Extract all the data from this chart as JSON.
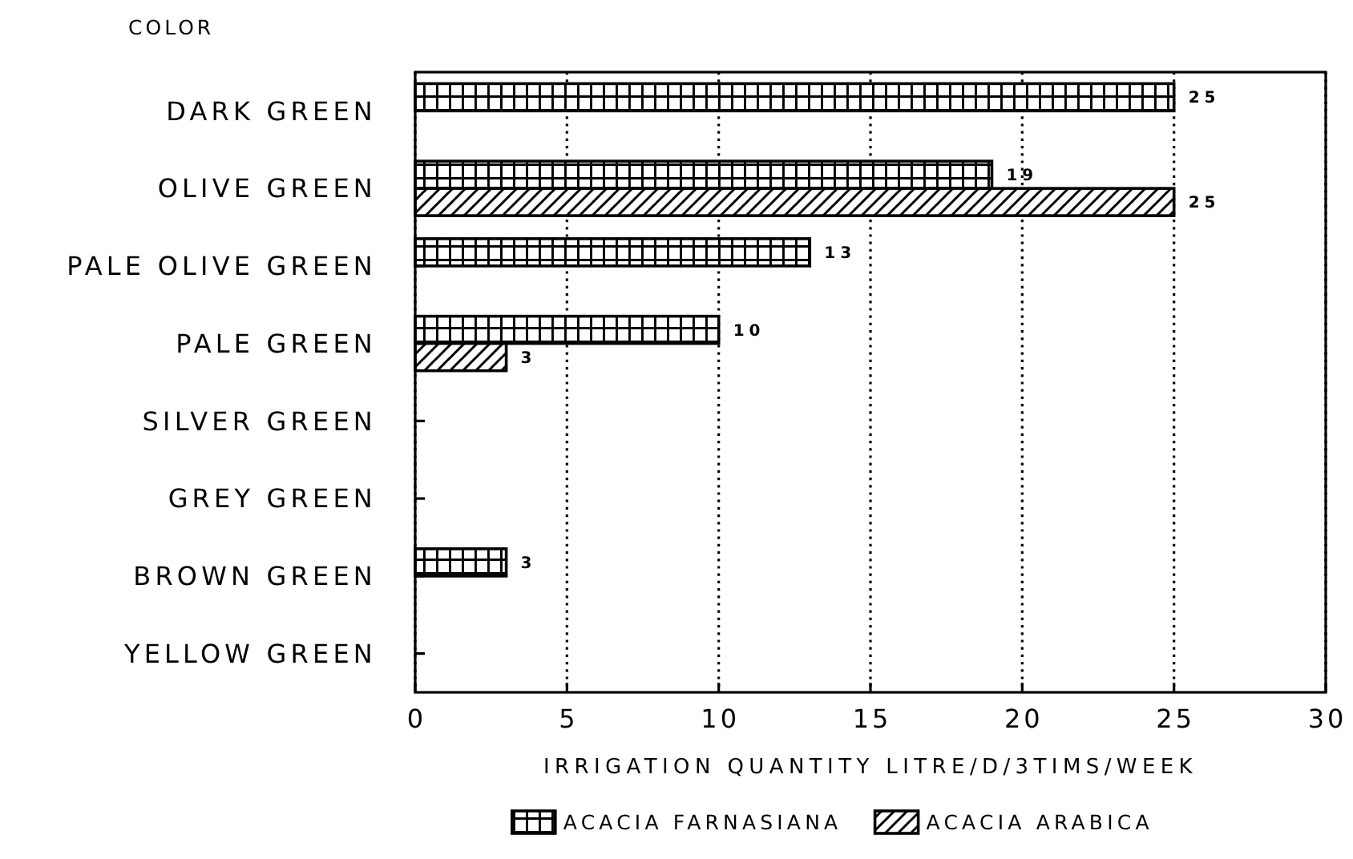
{
  "chart_data": {
    "type": "bar",
    "orientation": "horizontal",
    "ylabel": "COLOR",
    "xlabel": "IRRIGATION QUANTITY LITRE/D/3TIMS/WEEK",
    "categories": [
      "DARK GREEN",
      "OLIVE GREEN",
      "PALE OLIVE GREEN",
      "PALE GREEN",
      "SILVER GREEN",
      "GREY GREEN",
      "BROWN GREEN",
      "YELLOW GREEN"
    ],
    "series": [
      {
        "name": "ACACIA FARNASIANA",
        "color": "#000000",
        "values": [
          25,
          19,
          13,
          10,
          null,
          null,
          3,
          null
        ]
      },
      {
        "name": "ACACIA ARABICA",
        "color": "#000000",
        "values": [
          null,
          25,
          null,
          3,
          null,
          null,
          null,
          null
        ]
      }
    ],
    "xlim": [
      0,
      30
    ],
    "xticks": [
      0,
      5,
      10,
      15,
      20,
      25,
      30
    ],
    "grid": "x",
    "legend": "bottom",
    "data_labels": true
  }
}
